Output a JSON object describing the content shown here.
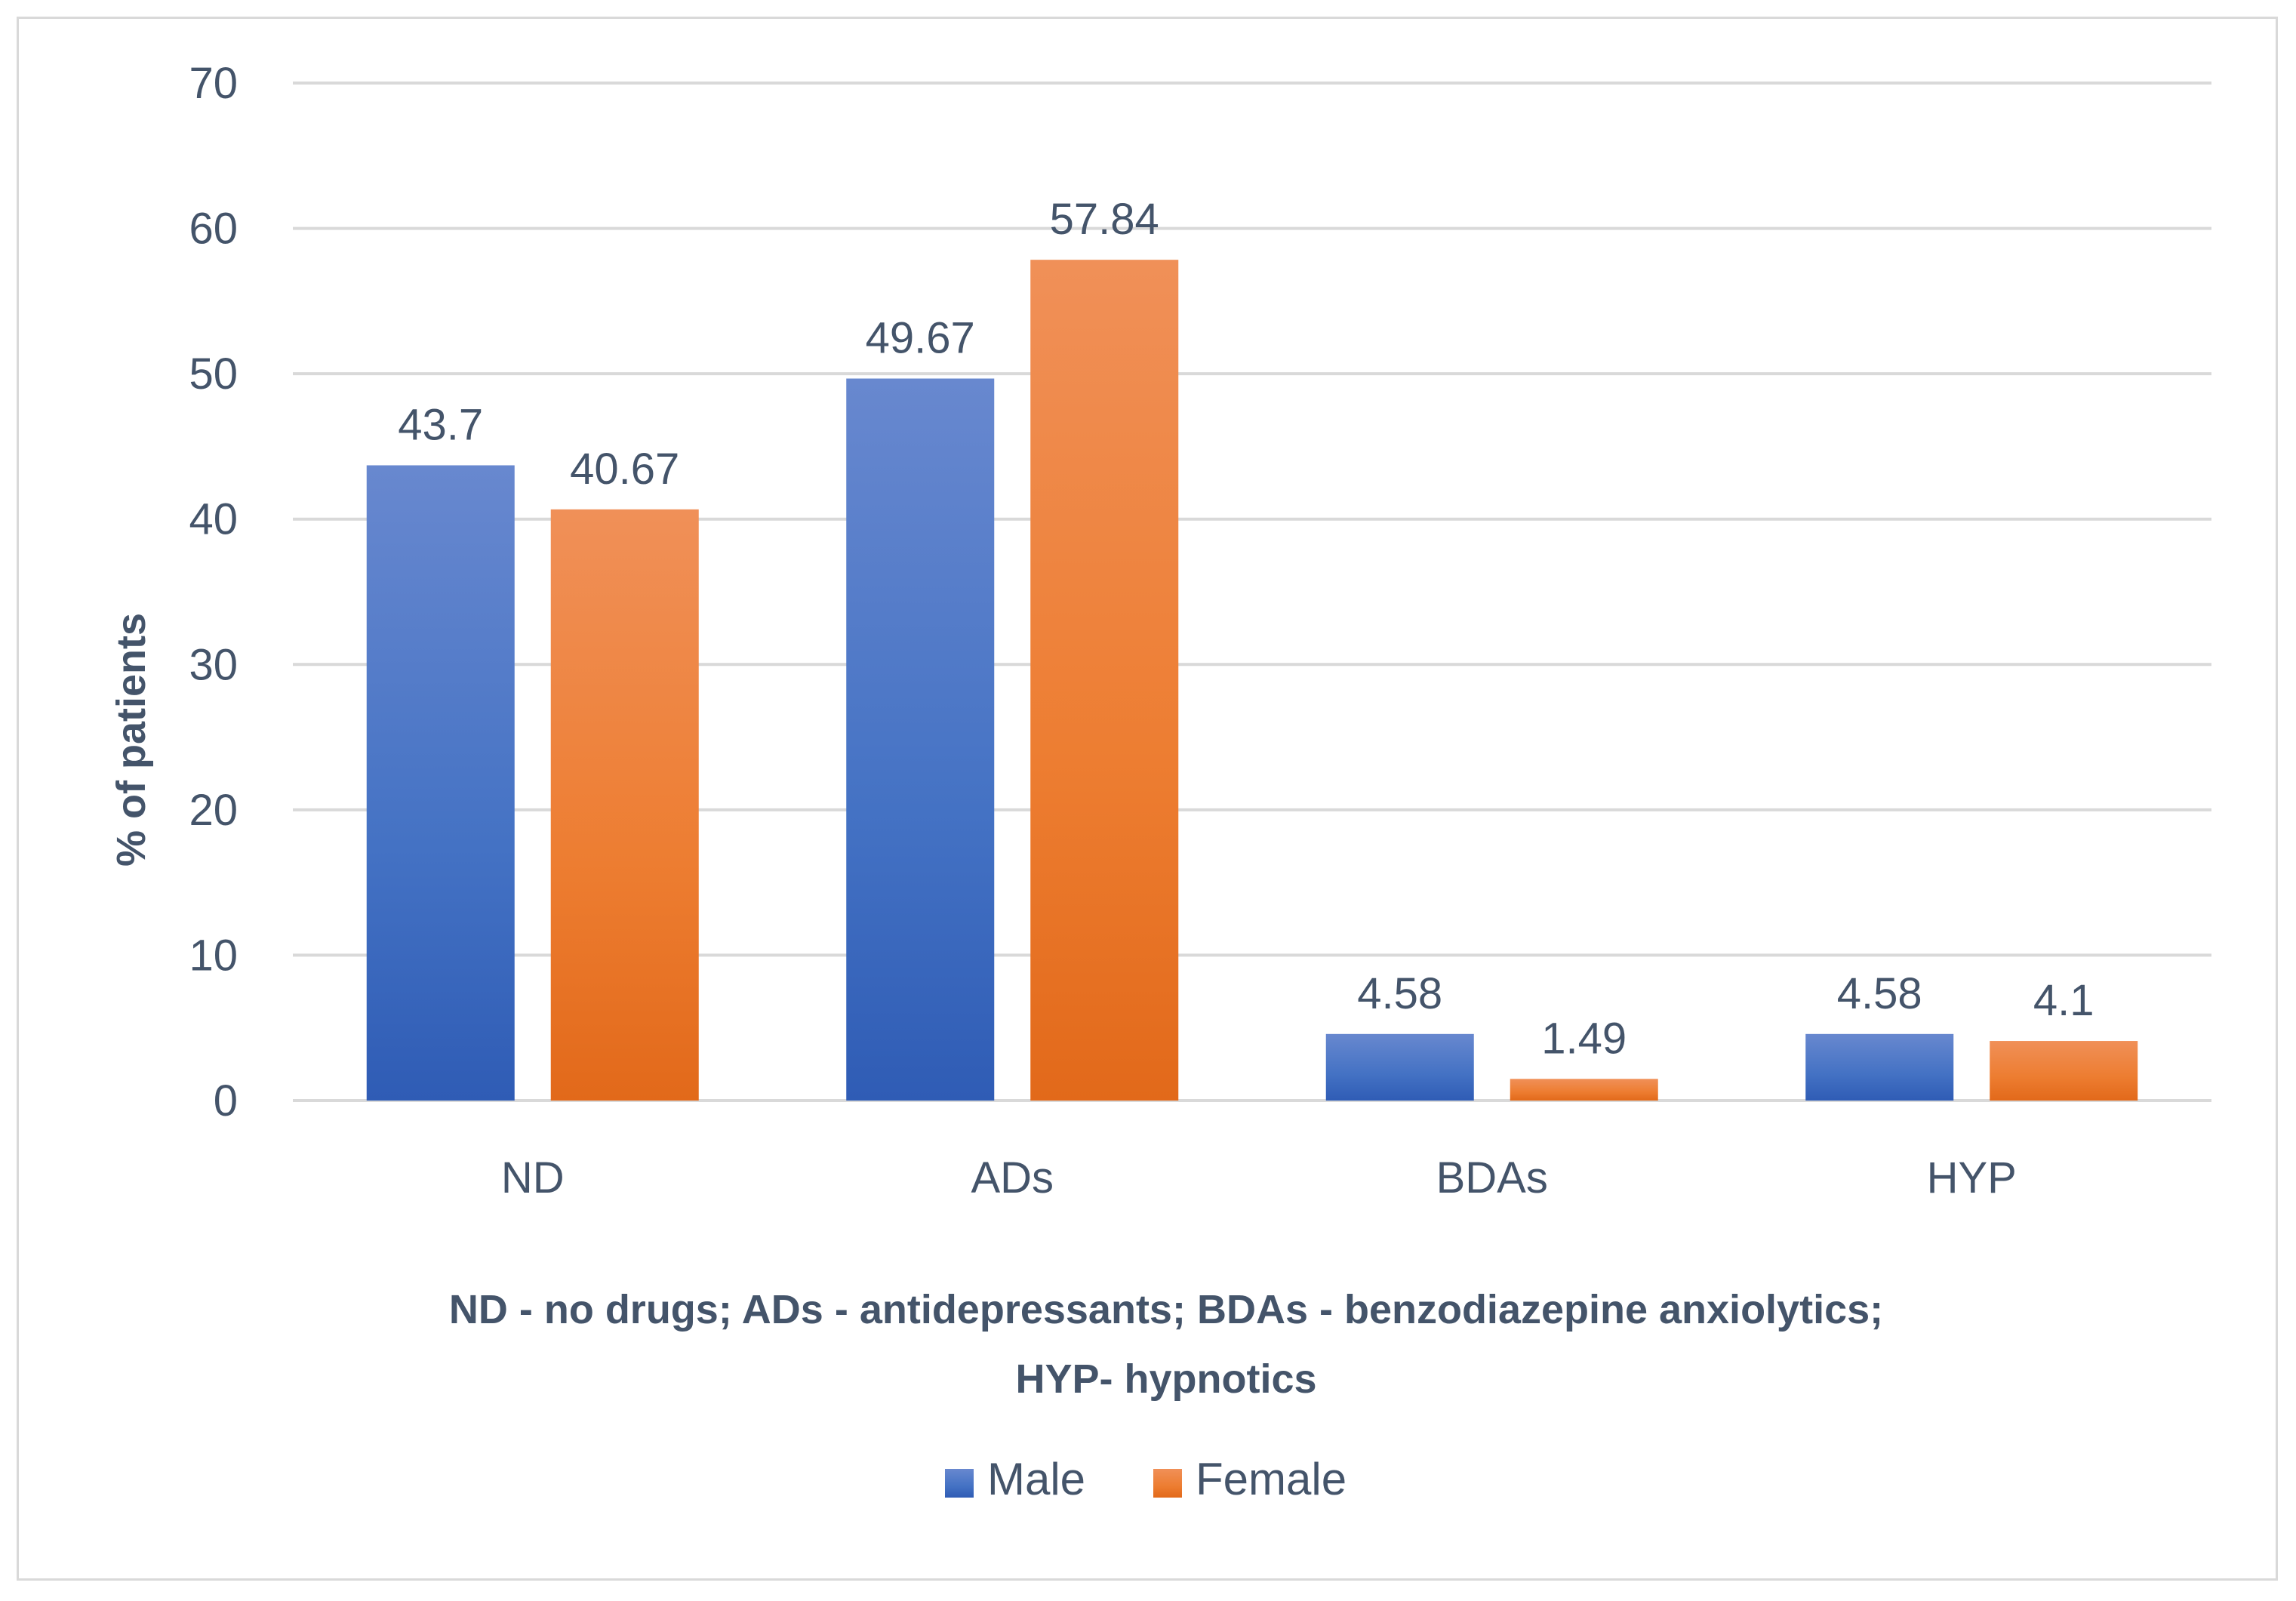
{
  "chart_data": {
    "type": "bar",
    "title": "",
    "categories": [
      "ND",
      "ADs",
      "BDAs",
      "HYP"
    ],
    "series": [
      {
        "name": "Male",
        "values": [
          43.7,
          49.67,
          4.58,
          4.58
        ],
        "color": "#4472c4",
        "color_light": "#6888cf",
        "color_dark": "#2f5cb5"
      },
      {
        "name": "Female",
        "values": [
          40.67,
          57.84,
          1.49,
          4.1
        ],
        "color": "#ed7d31",
        "color_light": "#f09058",
        "color_dark": "#e2691a"
      }
    ],
    "ylabel": "% of patients",
    "xlabel_lines": [
      "ND - no drugs; ADs - antidepressants; BDAs - benzodiazepine anxiolytics;",
      "HYP- hypnotics"
    ],
    "ylim": [
      0,
      70
    ],
    "yticks": [
      "0",
      "10",
      "20",
      "30",
      "40",
      "50",
      "60",
      "70"
    ],
    "data_labels": [
      [
        "43.7",
        "49.67",
        "4.58",
        "4.58"
      ],
      [
        "40.67",
        "57.84",
        "1.49",
        "4.1"
      ]
    ],
    "grid": true,
    "legend_position": "bottom-center",
    "gridline_color": "#d9d9d9",
    "text_color": "#44546a"
  }
}
